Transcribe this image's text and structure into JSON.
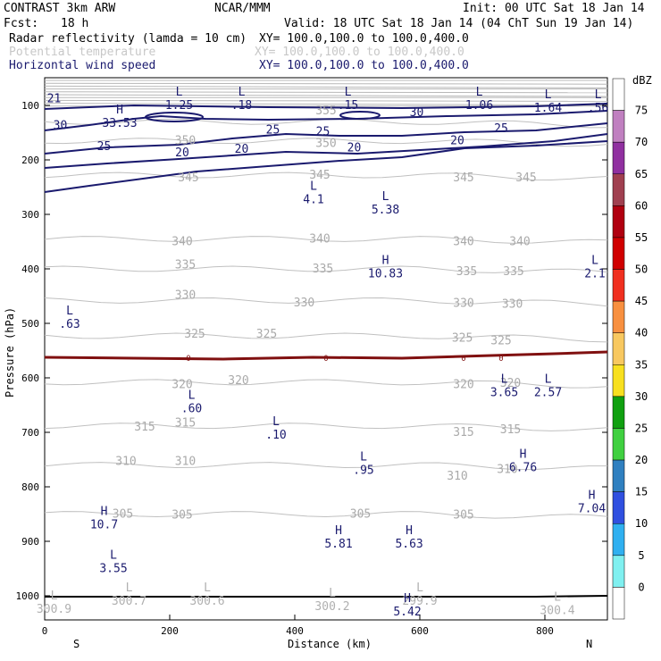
{
  "header": {
    "title_left": "CONTRAST  3km ARW",
    "title_center": "NCAR/MMM",
    "init": "Init: 00 UTC Sat 18 Jan 14",
    "fcst_label": "Fcst:",
    "fcst_value": "18 h",
    "valid": "Valid: 18 UTC Sat 18 Jan 14 (04 ChT Sun 19 Jan 14)",
    "fields": [
      {
        "name": "Radar reflectivity (lamda = 10 cm)",
        "xy": "XY= 100.0,100.0 to 100.0,400.0",
        "color": "#000000"
      },
      {
        "name": "Potential temperature",
        "xy": "XY= 100.0,100.0 to 100.0,400.0",
        "color": "#c8c8c8"
      },
      {
        "name": "Horizontal wind speed",
        "xy": "XY= 100.0,100.0 to 100.0,400.0",
        "color": "#1a1a6e"
      }
    ]
  },
  "chart_data": {
    "type": "cross-section contour",
    "xlabel": "Distance (km)",
    "ylabel": "Pressure (hPa)",
    "xlim": [
      0,
      900
    ],
    "ylim": [
      1050,
      60
    ],
    "x_ticks": [
      "0",
      "200",
      "400",
      "600",
      "800"
    ],
    "y_ticks": [
      "100",
      "200",
      "300",
      "400",
      "500",
      "600",
      "700",
      "800",
      "900",
      "1000"
    ],
    "ends": {
      "left": "S",
      "right": "N"
    },
    "theta_labels": [
      {
        "text": "355",
        "x": 450,
        "p": 110
      },
      {
        "text": "350",
        "x": 225,
        "p": 165
      },
      {
        "text": "350",
        "x": 450,
        "p": 170
      },
      {
        "text": "345",
        "x": 230,
        "p": 233
      },
      {
        "text": "345",
        "x": 440,
        "p": 228
      },
      {
        "text": "345",
        "x": 670,
        "p": 233
      },
      {
        "text": "345",
        "x": 770,
        "p": 233
      },
      {
        "text": "340",
        "x": 220,
        "p": 350
      },
      {
        "text": "340",
        "x": 440,
        "p": 345
      },
      {
        "text": "340",
        "x": 670,
        "p": 350
      },
      {
        "text": "340",
        "x": 760,
        "p": 350
      },
      {
        "text": "335",
        "x": 225,
        "p": 393
      },
      {
        "text": "335",
        "x": 445,
        "p": 400
      },
      {
        "text": "335",
        "x": 675,
        "p": 405
      },
      {
        "text": "335",
        "x": 750,
        "p": 405
      },
      {
        "text": "330",
        "x": 225,
        "p": 448
      },
      {
        "text": "330",
        "x": 415,
        "p": 462
      },
      {
        "text": "330",
        "x": 670,
        "p": 463
      },
      {
        "text": "330",
        "x": 748,
        "p": 465
      },
      {
        "text": "325",
        "x": 240,
        "p": 520
      },
      {
        "text": "325",
        "x": 355,
        "p": 520
      },
      {
        "text": "325",
        "x": 668,
        "p": 527
      },
      {
        "text": "325",
        "x": 730,
        "p": 532
      },
      {
        "text": "320",
        "x": 220,
        "p": 612
      },
      {
        "text": "320",
        "x": 310,
        "p": 605
      },
      {
        "text": "320",
        "x": 670,
        "p": 612
      },
      {
        "text": "320",
        "x": 745,
        "p": 610
      },
      {
        "text": "315",
        "x": 225,
        "p": 683
      },
      {
        "text": "315",
        "x": 160,
        "p": 690
      },
      {
        "text": "315",
        "x": 670,
        "p": 700
      },
      {
        "text": "315",
        "x": 745,
        "p": 695
      },
      {
        "text": "310",
        "x": 130,
        "p": 753
      },
      {
        "text": "310",
        "x": 225,
        "p": 753
      },
      {
        "text": "310",
        "x": 660,
        "p": 780
      },
      {
        "text": "310",
        "x": 740,
        "p": 768
      },
      {
        "text": "305",
        "x": 125,
        "p": 850
      },
      {
        "text": "305",
        "x": 220,
        "p": 852
      },
      {
        "text": "305",
        "x": 505,
        "p": 850
      },
      {
        "text": "305",
        "x": 670,
        "p": 852
      }
    ],
    "wind_labels": [
      {
        "text": "21",
        "x": 15,
        "p": 88
      },
      {
        "text": "30",
        "x": 25,
        "p": 137
      },
      {
        "text": "25",
        "x": 95,
        "p": 175
      },
      {
        "text": "20",
        "x": 220,
        "p": 187
      },
      {
        "text": "20",
        "x": 315,
        "p": 180
      },
      {
        "text": "25",
        "x": 365,
        "p": 145
      },
      {
        "text": "25",
        "x": 445,
        "p": 148
      },
      {
        "text": "30",
        "x": 595,
        "p": 113
      },
      {
        "text": "25",
        "x": 730,
        "p": 143
      },
      {
        "text": "20",
        "x": 495,
        "p": 178
      },
      {
        "text": "20",
        "x": 660,
        "p": 165
      }
    ],
    "extrema": [
      {
        "type": "L",
        "value": "1.25",
        "x": 215,
        "p": 85
      },
      {
        "type": "L",
        "value": ".18",
        "x": 315,
        "p": 85
      },
      {
        "type": "L",
        "value": ".15",
        "x": 485,
        "p": 85
      },
      {
        "type": "L",
        "value": "1.06",
        "x": 695,
        "p": 85
      },
      {
        "type": "L",
        "value": "1.64",
        "x": 805,
        "p": 90
      },
      {
        "type": "L",
        "value": ".56",
        "x": 885,
        "p": 90
      },
      {
        "type": "H",
        "value": "33.53",
        "x": 120,
        "p": 118
      },
      {
        "type": "L",
        "value": "4.1",
        "x": 430,
        "p": 258
      },
      {
        "type": "L",
        "value": "5.38",
        "x": 545,
        "p": 277
      },
      {
        "type": "H",
        "value": "10.83",
        "x": 545,
        "p": 394
      },
      {
        "type": "L",
        "value": "2.1",
        "x": 880,
        "p": 394
      },
      {
        "type": "L",
        "value": ".63",
        "x": 40,
        "p": 487
      },
      {
        "type": "L",
        "value": "3.65",
        "x": 735,
        "p": 612
      },
      {
        "type": "L",
        "value": "2.57",
        "x": 805,
        "p": 612
      },
      {
        "type": "L",
        "value": ".60",
        "x": 235,
        "p": 642
      },
      {
        "type": "L",
        "value": ".10",
        "x": 370,
        "p": 690
      },
      {
        "type": "L",
        "value": ".95",
        "x": 510,
        "p": 755
      },
      {
        "type": "H",
        "value": "6.76",
        "x": 765,
        "p": 750
      },
      {
        "type": "H",
        "value": "7.04",
        "x": 875,
        "p": 825
      },
      {
        "type": "H",
        "value": "10.7",
        "x": 95,
        "p": 855
      },
      {
        "type": "H",
        "value": "5.81",
        "x": 470,
        "p": 890
      },
      {
        "type": "H",
        "value": "5.63",
        "x": 583,
        "p": 890
      },
      {
        "type": "L",
        "value": "3.55",
        "x": 110,
        "p": 935
      },
      {
        "type": "L",
        "value": "300.7",
        "x": 135,
        "p": 995,
        "faint": true
      },
      {
        "type": "L",
        "value": "300.6",
        "x": 260,
        "p": 995,
        "faint": true
      },
      {
        "type": "L",
        "value": "300.2",
        "x": 460,
        "p": 1005,
        "faint": true
      },
      {
        "type": "L",
        "value": "299.9",
        "x": 600,
        "p": 995,
        "faint": true
      },
      {
        "type": "L",
        "value": "300.9",
        "x": 15,
        "p": 1010,
        "faint": true
      },
      {
        "type": "L",
        "value": "300.4",
        "x": 820,
        "p": 1012,
        "faint": true
      },
      {
        "type": "H",
        "value": "5.42",
        "x": 580,
        "p": 1015
      }
    ],
    "zero_isotherm_labels": [
      "0",
      "0",
      "0",
      "0"
    ],
    "colorbar": {
      "unit": "dBZ",
      "levels": [
        "75",
        "70",
        "65",
        "60",
        "55",
        "50",
        "45",
        "40",
        "35",
        "30",
        "25",
        "20",
        "15",
        "10",
        "5",
        "0"
      ],
      "colors": [
        "#ffffff",
        "#c080c0",
        "#9030a0",
        "#a04050",
        "#b00010",
        "#d00000",
        "#f03020",
        "#f89040",
        "#f8c860",
        "#f8e020",
        "#10a010",
        "#40d040",
        "#3080c0",
        "#3050e0",
        "#30b0f0",
        "#80f0f0",
        "#ffffff"
      ]
    }
  }
}
